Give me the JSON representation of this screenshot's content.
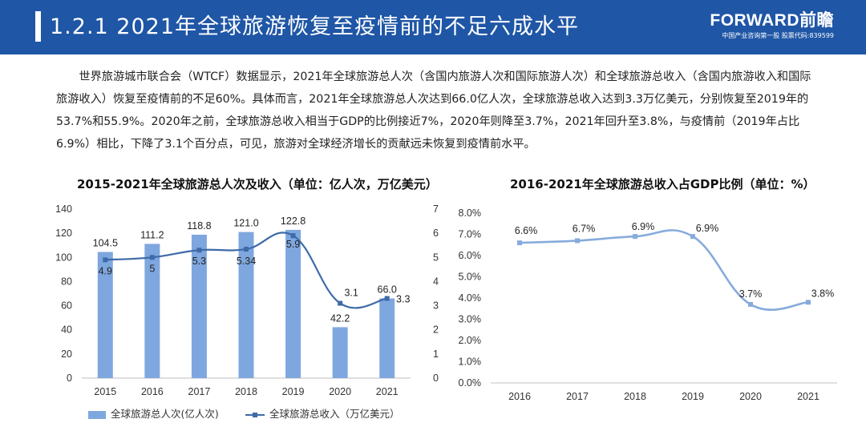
{
  "header": {
    "title": "1.2.1 2021年全球旅游恢复至疫情前的不足六成水平",
    "logo_brand": "FORWARD前瞻",
    "logo_sub": "中国产业咨询第一股 股票代码:839599"
  },
  "paragraph": "世界旅游城市联合会（WTCF）数据显示，2021年全球旅游总人次（含国内旅游人次和国际旅游人次）和全球旅游总收入（含国内旅游收入和国际旅游收入）恢复至疫情前的不足60%。具体而言，2021年全球旅游总人次达到66.0亿人次，全球旅游总收入达到3.3万亿美元，分别恢复至2019年的53.7%和55.9%。2020年之前，全球旅游总收入相当于GDP的比例接近7%，2020年则降至3.7%，2021年回升至3.8%，与疫情前（2019年占比6.9%）相比，下降了3.1个百分点，可见，旅游对全球经济增长的贡献远未恢复到疫情前水平。",
  "colors": {
    "header_bg": "#1f56a6",
    "bar": "#7fa7df",
    "line": "#3d6aa8",
    "line2": "#86abdc"
  },
  "chart_data": [
    {
      "type": "bar+line",
      "title": "2015-2021年全球旅游总人次及收入（单位：亿人次，万亿美元）",
      "categories": [
        "2015",
        "2016",
        "2017",
        "2018",
        "2019",
        "2020",
        "2021"
      ],
      "series": [
        {
          "name": "全球旅游总人次(亿人次)",
          "type": "bar",
          "axis": "left",
          "values": [
            104.5,
            111.2,
            118.8,
            121.0,
            122.8,
            42.2,
            66.0
          ],
          "labels": [
            "104.5",
            "111.2",
            "118.8",
            "121.0",
            "122.8",
            "42.2",
            "66.0"
          ]
        },
        {
          "name": "全球旅游总收入（万亿美元）",
          "type": "line",
          "axis": "right",
          "values": [
            4.9,
            5,
            5.3,
            5.34,
            5.9,
            3.1,
            3.3
          ],
          "labels": [
            "4.9",
            "5",
            "5.3",
            "5.34",
            "5.9",
            "3.1",
            "3.3"
          ]
        }
      ],
      "y_left": {
        "min": 0,
        "max": 140,
        "step": 20,
        "ticks": [
          "0",
          "20",
          "40",
          "60",
          "80",
          "100",
          "120",
          "140"
        ]
      },
      "y_right": {
        "min": 0,
        "max": 7,
        "step": 1,
        "ticks": [
          "0",
          "1",
          "2",
          "3",
          "4",
          "5",
          "6",
          "7"
        ]
      },
      "legend": [
        "全球旅游总人次(亿人次)",
        "全球旅游总收入（万亿美元）"
      ],
      "legend_position": "bottom"
    },
    {
      "type": "line",
      "title": "2016-2021年全球旅游总收入占GDP比例（单位：%）",
      "categories": [
        "2016",
        "2017",
        "2018",
        "2019",
        "2020",
        "2021"
      ],
      "values": [
        6.6,
        6.7,
        6.9,
        6.9,
        3.7,
        3.8
      ],
      "labels": [
        "6.6%",
        "6.7%",
        "6.9%",
        "6.9%",
        "3.7%",
        "3.8%"
      ],
      "y": {
        "min": 0,
        "max": 8,
        "step": 1,
        "ticks": [
          "0.0%",
          "1.0%",
          "2.0%",
          "3.0%",
          "4.0%",
          "5.0%",
          "6.0%",
          "7.0%",
          "8.0%"
        ]
      },
      "smooth": true
    }
  ]
}
